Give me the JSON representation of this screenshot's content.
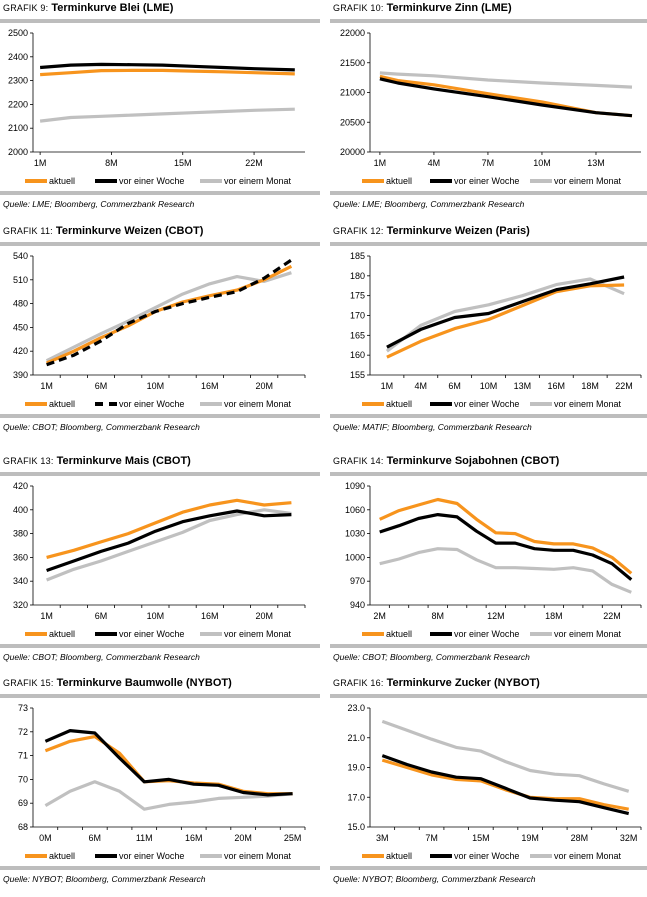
{
  "colors": {
    "aktuell": "#f7941d",
    "vor_einer_woche": "#000000",
    "vor_einem_monat": "#c0c0c0",
    "rule": "#bdbdbd"
  },
  "legend": [
    "aktuell",
    "vor einer Woche",
    "vor einem Monat"
  ],
  "chart_data": [
    {
      "type": "line",
      "number": "GRAFIK 9:",
      "title": "Terminkurve Blei (LME)",
      "source": "Quelle: LME; Bloomberg, Commerzbank Research",
      "x_mode": "numeric",
      "xlim": [
        0.3,
        27
      ],
      "x_ticks": [
        {
          "value": 1,
          "label": "1M"
        },
        {
          "value": 8,
          "label": "8M"
        },
        {
          "value": 15,
          "label": "15M"
        },
        {
          "value": 22,
          "label": "22M"
        }
      ],
      "x": [
        1,
        4,
        7,
        10,
        13,
        16,
        19,
        22,
        26
      ],
      "ylim": [
        2000,
        2500
      ],
      "y_ticks": [
        "2000",
        "2100",
        "2200",
        "2300",
        "2400",
        "2500"
      ],
      "series": [
        {
          "name": "aktuell",
          "values": [
            2325,
            2333,
            2342,
            2343,
            2343,
            2340,
            2337,
            2333,
            2328
          ]
        },
        {
          "name": "vor einer Woche",
          "values": [
            2355,
            2365,
            2368,
            2367,
            2365,
            2360,
            2355,
            2350,
            2345
          ]
        },
        {
          "name": "vor einem Monat",
          "values": [
            2130,
            2145,
            2150,
            2155,
            2160,
            2165,
            2170,
            2175,
            2180
          ]
        }
      ]
    },
    {
      "type": "line",
      "number": "GRAFIK 10:",
      "title": "Terminkurve Zinn (LME)",
      "source": "Quelle: LME; Bloomberg, Commerzbank Research",
      "x_mode": "numeric",
      "xlim": [
        0.45,
        15.5
      ],
      "x_ticks": [
        {
          "value": 1,
          "label": "1M"
        },
        {
          "value": 4,
          "label": "4M"
        },
        {
          "value": 7,
          "label": "7M"
        },
        {
          "value": 10,
          "label": "10M"
        },
        {
          "value": 13,
          "label": "13M"
        }
      ],
      "x": [
        1,
        2,
        4,
        7,
        10,
        13,
        15
      ],
      "ylim": [
        20000,
        22000
      ],
      "y_ticks": [
        "20000",
        "20500",
        "21000",
        "21500",
        "22000"
      ],
      "series": [
        {
          "name": "aktuell",
          "values": [
            21270,
            21200,
            21130,
            20980,
            20840,
            20660,
            20610
          ]
        },
        {
          "name": "vor einer Woche",
          "values": [
            21230,
            21160,
            21060,
            20930,
            20790,
            20660,
            20610
          ]
        },
        {
          "name": "vor einem Monat",
          "values": [
            21330,
            21310,
            21280,
            21210,
            21160,
            21120,
            21090
          ]
        }
      ]
    },
    {
      "type": "line",
      "number": "GRAFIK 11:",
      "title": "Terminkurve Weizen (CBOT)",
      "source": "Quelle: CBOT; Bloomberg, Commerzbank Research",
      "x_mode": "category",
      "dashed_week": true,
      "categories": [
        "1M",
        "",
        "6M",
        "",
        "10M",
        "",
        "16M",
        "",
        "20M",
        ""
      ],
      "ylim": [
        390,
        540
      ],
      "y_ticks": [
        "390",
        "420",
        "450",
        "480",
        "510",
        "540"
      ],
      "series": [
        {
          "name": "aktuell",
          "values": [
            405,
            420,
            437,
            452,
            470,
            482,
            490,
            497,
            510,
            527
          ]
        },
        {
          "name": "vor einer Woche",
          "values": [
            403,
            415,
            433,
            455,
            470,
            480,
            488,
            495,
            512,
            535
          ]
        },
        {
          "name": "vor einem Monat",
          "values": [
            408,
            425,
            442,
            458,
            475,
            492,
            505,
            514,
            508,
            519
          ]
        }
      ]
    },
    {
      "type": "line",
      "number": "GRAFIK 12:",
      "title": "Terminkurve Weizen (Paris)",
      "source": "Quelle: MATIF; Bloomberg, Commerzbank Research",
      "x_mode": "category",
      "categories": [
        "1M",
        "4M",
        "6M",
        "10M",
        "13M",
        "16M",
        "18M",
        "22M"
      ],
      "ylim": [
        155,
        185
      ],
      "y_ticks": [
        "155",
        "160",
        "165",
        "170",
        "175",
        "180",
        "185"
      ],
      "series": [
        {
          "name": "aktuell",
          "values": [
            159.5,
            163.5,
            166.7,
            169,
            172.5,
            176,
            177.5,
            177.7
          ]
        },
        {
          "name": "vor einer Woche",
          "values": [
            162,
            166.5,
            169.5,
            170.5,
            173.5,
            176.5,
            178,
            179.7
          ]
        },
        {
          "name": "vor einem Monat",
          "values": [
            161,
            167.5,
            171,
            172.7,
            175,
            177.8,
            179.2,
            175.5
          ]
        }
      ]
    },
    {
      "type": "line",
      "number": "GRAFIK 13:",
      "title": "Terminkurve Mais (CBOT)",
      "source": "Quelle: CBOT; Bloomberg, Commerzbank Research",
      "x_mode": "category",
      "categories": [
        "1M",
        "",
        "6M",
        "",
        "10M",
        "",
        "16M",
        "",
        "20M",
        ""
      ],
      "ylim": [
        320,
        420
      ],
      "y_ticks": [
        "320",
        "340",
        "360",
        "380",
        "400",
        "420"
      ],
      "series": [
        {
          "name": "aktuell",
          "values": [
            360,
            366,
            373,
            380,
            389,
            398,
            404,
            408,
            404,
            406
          ]
        },
        {
          "name": "vor einer Woche",
          "values": [
            349,
            357,
            365,
            372,
            382,
            390,
            395,
            399,
            395,
            396
          ]
        },
        {
          "name": "vor einem Monat",
          "values": [
            341,
            350,
            357,
            365,
            373,
            381,
            391,
            396,
            400,
            397
          ]
        }
      ]
    },
    {
      "type": "line",
      "number": "GRAFIK 14:",
      "title": "Terminkurve Sojabohnen (CBOT)",
      "source": "Quelle: CBOT; Bloomberg, Commerzbank Research",
      "x_mode": "category",
      "categories": [
        "2M",
        "",
        "",
        "8M",
        "",
        "",
        "12M",
        "",
        "",
        "18M",
        "",
        "",
        "22M",
        ""
      ],
      "ylim": [
        940,
        1090
      ],
      "y_ticks": [
        "940",
        "970",
        "1000",
        "1030",
        "1060",
        "1090"
      ],
      "series": [
        {
          "name": "aktuell",
          "values": [
            1048,
            1059,
            1066,
            1073,
            1068,
            1048,
            1031,
            1030,
            1020,
            1017,
            1017,
            1012,
            1000,
            980
          ]
        },
        {
          "name": "vor einer Woche",
          "values": [
            1032,
            1040,
            1049,
            1054,
            1051,
            1033,
            1018,
            1018,
            1011,
            1009,
            1009,
            1003,
            992,
            972
          ]
        },
        {
          "name": "vor einem Monat",
          "values": [
            992,
            998,
            1006,
            1011,
            1010,
            997,
            987,
            987,
            986,
            985,
            987,
            983,
            966,
            956
          ]
        }
      ]
    },
    {
      "type": "line",
      "number": "GRAFIK 15:",
      "title": "Terminkurve Baumwolle (NYBOT)",
      "source": "Quelle: NYBOT; Bloomberg, Commerzbank Research",
      "x_mode": "category",
      "categories": [
        "0M",
        "",
        "6M",
        "",
        "11M",
        "",
        "16M",
        "",
        "20M",
        "",
        "25M"
      ],
      "ylim": [
        68,
        73
      ],
      "y_ticks": [
        "68",
        "69",
        "70",
        "71",
        "72",
        "73"
      ],
      "series": [
        {
          "name": "aktuell",
          "values": [
            71.2,
            71.6,
            71.8,
            71.1,
            69.9,
            69.95,
            69.85,
            69.8,
            69.5,
            69.4,
            69.4
          ]
        },
        {
          "name": "vor einer Woche",
          "values": [
            71.6,
            72.05,
            71.95,
            70.9,
            69.9,
            70.0,
            69.8,
            69.75,
            69.45,
            69.35,
            69.4
          ]
        },
        {
          "name": "vor einem Monat",
          "values": [
            68.9,
            69.5,
            69.9,
            69.5,
            68.75,
            68.95,
            69.05,
            69.2,
            69.25,
            69.3,
            69.4
          ]
        }
      ]
    },
    {
      "type": "line",
      "number": "GRAFIK 16:",
      "title": "Terminkurve Zucker (NYBOT)",
      "source": "Quelle: NYBOT; Bloomberg, Commerzbank Research",
      "x_mode": "category",
      "categories": [
        "3M",
        "",
        "7M",
        "",
        "15M",
        "",
        "19M",
        "",
        "28M",
        "",
        "32M"
      ],
      "ylim": [
        15,
        23
      ],
      "y_ticks": [
        "15.0",
        "17.0",
        "19.0",
        "21.0",
        "23.0"
      ],
      "series": [
        {
          "name": "aktuell",
          "values": [
            19.5,
            19.0,
            18.5,
            18.2,
            18.1,
            17.5,
            17.0,
            16.9,
            16.9,
            16.5,
            16.2
          ]
        },
        {
          "name": "vor einer Woche",
          "values": [
            19.8,
            19.2,
            18.7,
            18.35,
            18.25,
            17.6,
            16.95,
            16.8,
            16.7,
            16.3,
            15.9
          ]
        },
        {
          "name": "vor einem Monat",
          "values": [
            22.1,
            21.5,
            20.9,
            20.35,
            20.1,
            19.4,
            18.8,
            18.55,
            18.45,
            17.9,
            17.4
          ]
        }
      ]
    }
  ]
}
